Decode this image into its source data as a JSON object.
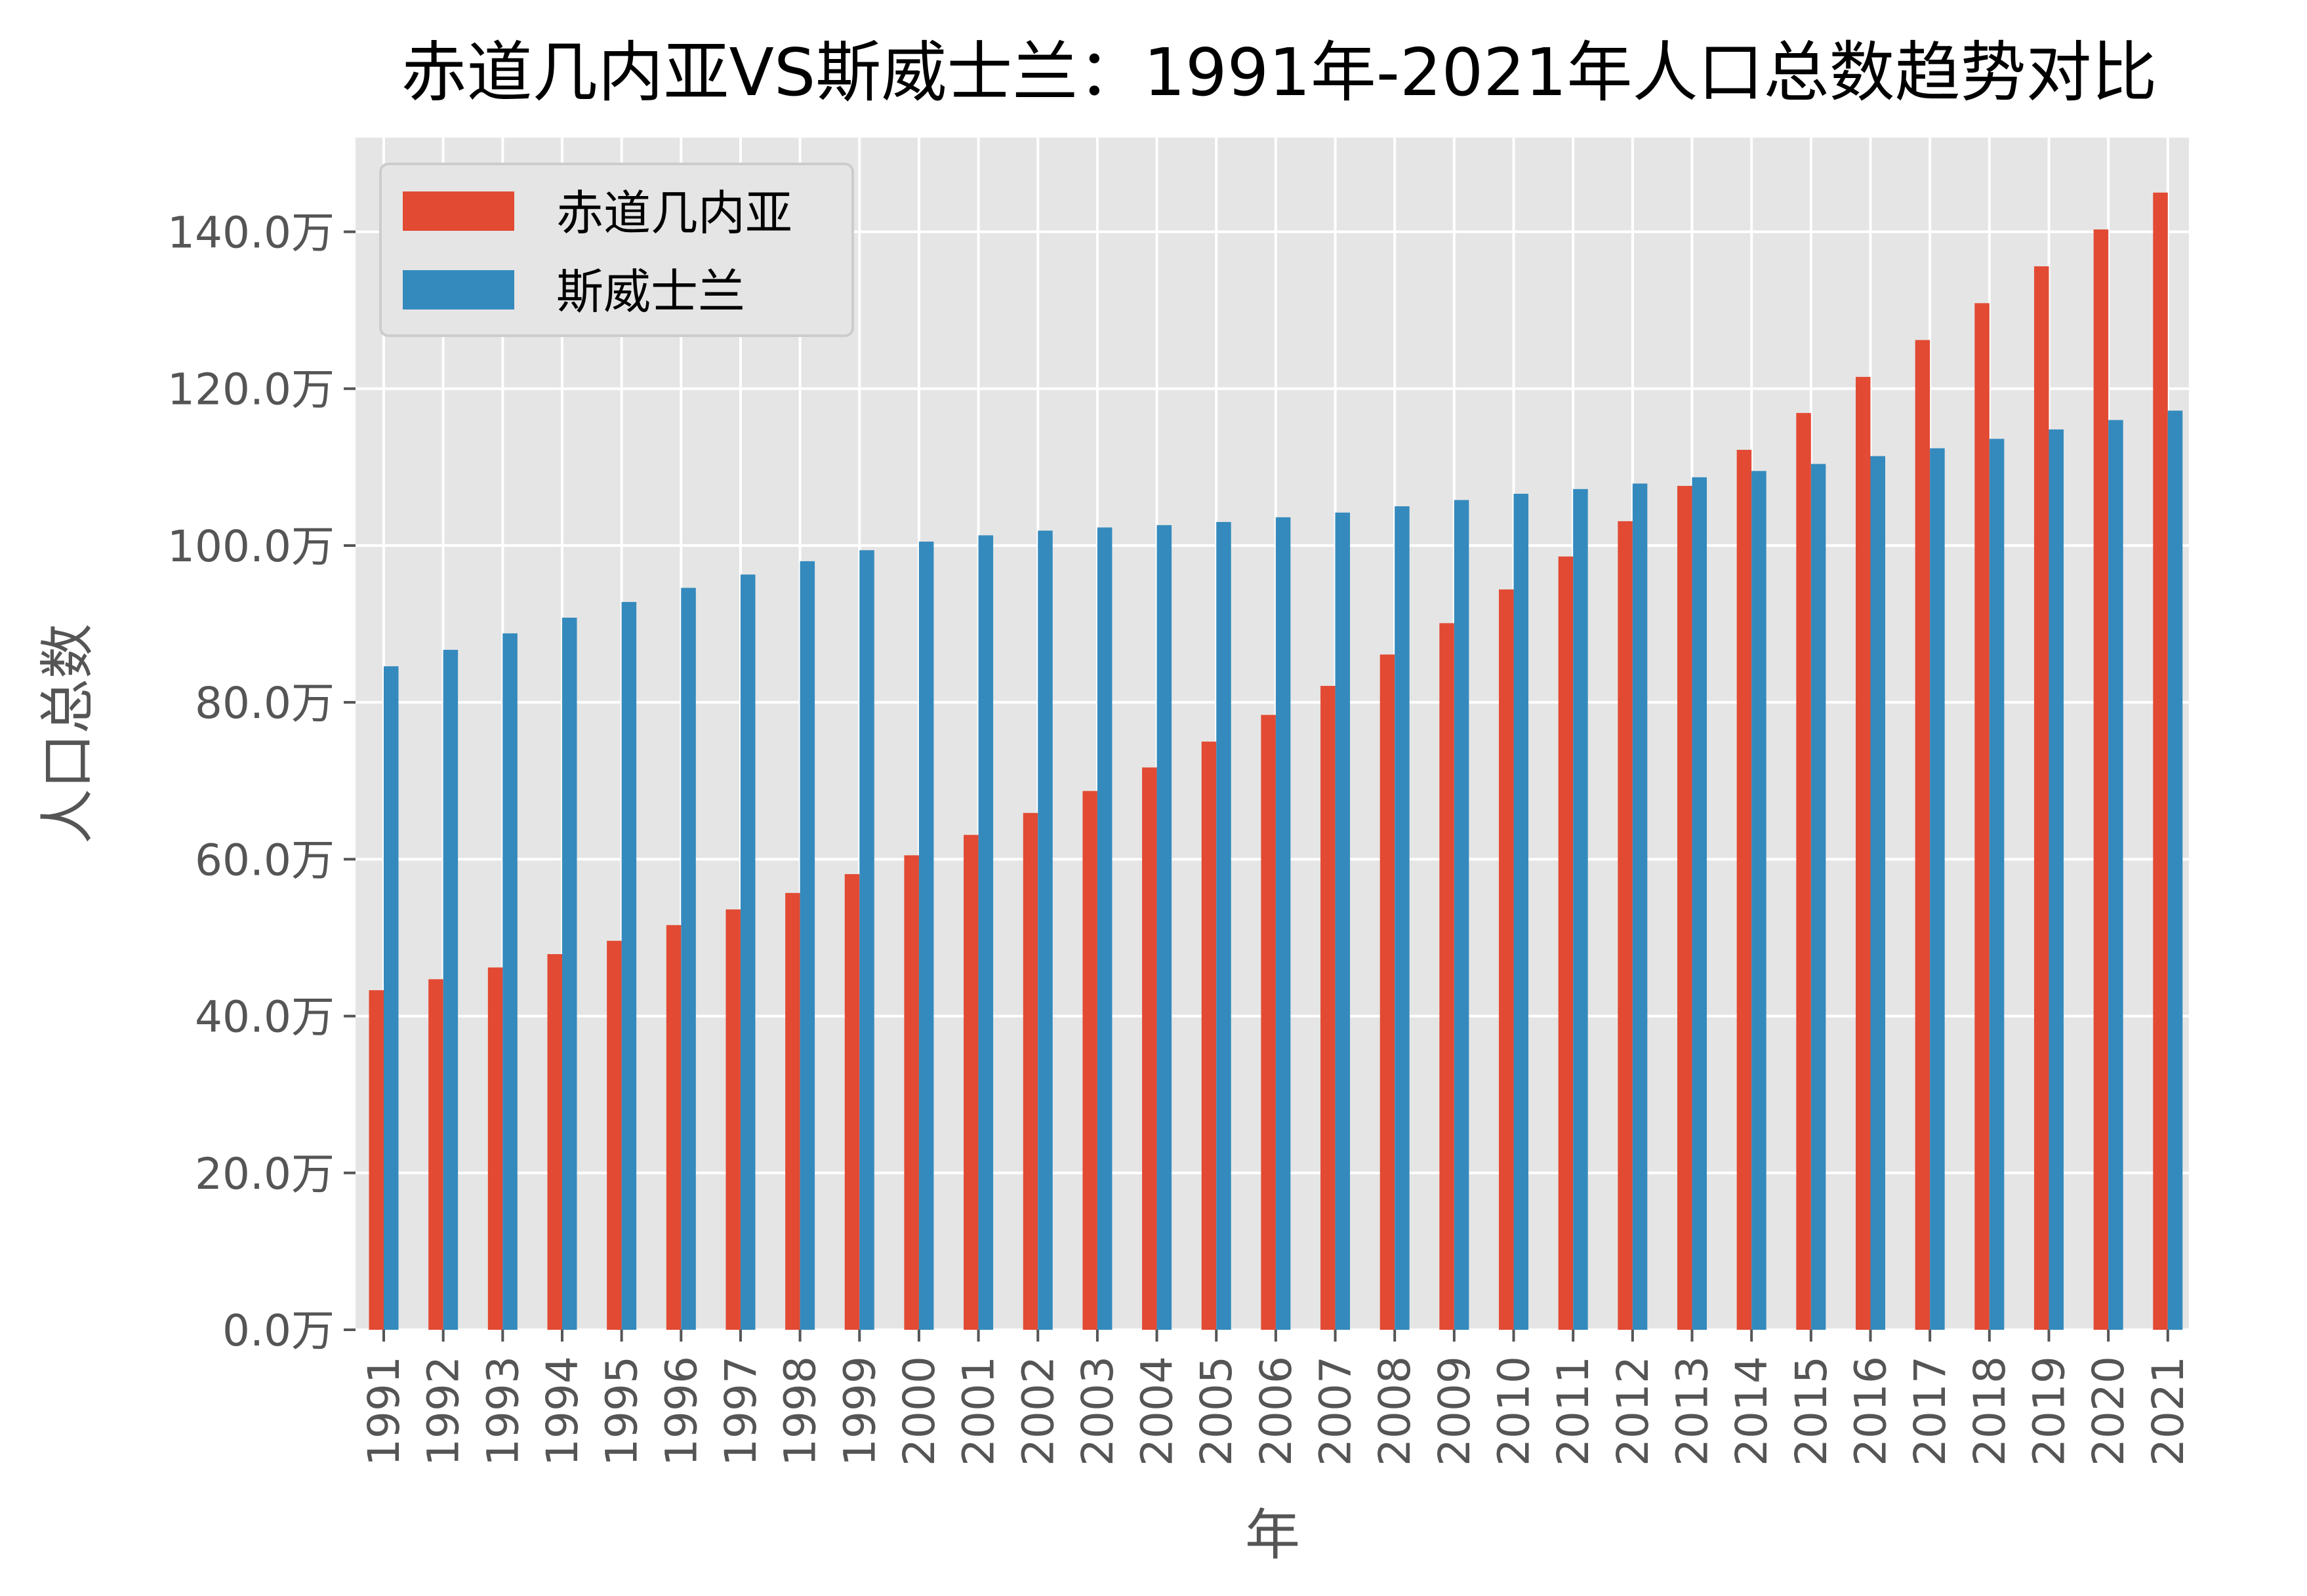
{
  "chart_data": {
    "type": "bar",
    "title": "赤道几内亚VS斯威士兰：1991年-2021年人口总数趋势对比",
    "xlabel": "年",
    "ylabel": "人口总数",
    "ylim": [
      0,
      152
    ],
    "yticks": [
      0,
      20,
      40,
      60,
      80,
      100,
      120,
      140
    ],
    "ytick_labels": [
      "0.0万",
      "20.0万",
      "40.0万",
      "60.0万",
      "80.0万",
      "100.0万",
      "120.0万",
      "140.0万"
    ],
    "grid": true,
    "legend_position": "upper-left",
    "categories": [
      "1991",
      "1992",
      "1993",
      "1994",
      "1995",
      "1996",
      "1997",
      "1998",
      "1999",
      "2000",
      "2001",
      "2002",
      "2003",
      "2004",
      "2005",
      "2006",
      "2007",
      "2008",
      "2009",
      "2010",
      "2011",
      "2012",
      "2013",
      "2014",
      "2015",
      "2016",
      "2017",
      "2018",
      "2019",
      "2020",
      "2021"
    ],
    "series": [
      {
        "name": "赤道几内亚",
        "color": "#E24A33",
        "values": [
          43.3,
          44.7,
          46.2,
          47.9,
          49.6,
          51.6,
          53.6,
          55.7,
          58.1,
          60.5,
          63.1,
          65.9,
          68.7,
          71.7,
          75.0,
          78.4,
          82.1,
          86.1,
          90.1,
          94.4,
          98.6,
          103.1,
          107.6,
          112.2,
          116.9,
          121.5,
          126.2,
          130.9,
          135.6,
          140.3,
          145.0
        ]
      },
      {
        "name": "斯威士兰",
        "color": "#348ABD",
        "values": [
          84.6,
          86.7,
          88.8,
          90.8,
          92.8,
          94.6,
          96.3,
          98.0,
          99.4,
          100.5,
          101.3,
          101.9,
          102.3,
          102.6,
          103.0,
          103.6,
          104.2,
          105.0,
          105.8,
          106.6,
          107.2,
          107.9,
          108.7,
          109.5,
          110.4,
          111.4,
          112.4,
          113.6,
          114.8,
          116.0,
          117.2
        ]
      }
    ]
  }
}
